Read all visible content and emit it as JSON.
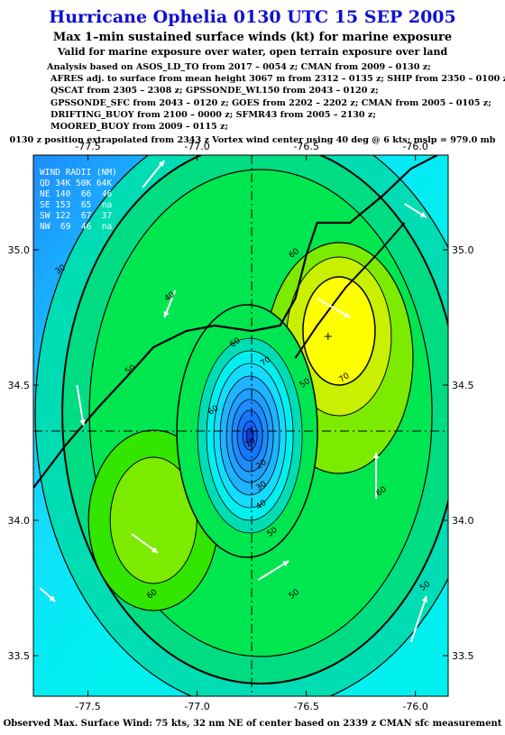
{
  "header": {
    "title": "Hurricane Ophelia 0130 UTC 15 SEP 2005",
    "subtitle": "Max 1–min sustained surface winds (kt) for marine exposure",
    "subtitle2": "Valid for marine exposure over water, open terrain exposure over land",
    "analysis_lines": [
      "Analysis based on  ASOS_LD_TO from 2017 – 0054 z;  CMAN from 2009 – 0130 z;",
      "AFRES adj. to surface from mean height 3067 m from 2312 – 0135 z;  SHIP from 2350 – 0100 z;",
      "QSCAT from 2305 – 2308 z;  GPSSONDE_WL150 from 2043 – 0120 z;",
      "GPSSONDE_SFC from 2043 – 0120 z;  GOES from 2202 – 2202 z;  CMAN from 2005 – 0105 z;",
      "DRIFTING_BUOY from 2100 – 0000 z;  SFMR43 from 2005 – 2130 z;",
      "MOORED_BUOY from 2009 – 0115 z;"
    ],
    "position_line": "0130 z position extrapolated from 2343 z Vortex wind center using 40 deg @ 6 kts; mslp = 979.0 mb"
  },
  "footer": "Observed Max. Surface Wind: 75 kts, 32 nm NE of center based on 2339 z CMAN sfc measurement",
  "wind_radii": {
    "title": "WIND RADII (NM)",
    "header": "QD 34K 50K 64K",
    "rows": [
      {
        "quadrant": "NE",
        "r34": "140",
        "r50": "66",
        "r64": "46"
      },
      {
        "quadrant": "SE",
        "r34": "153",
        "r50": "65",
        "r64": "na"
      },
      {
        "quadrant": "SW",
        "r34": "122",
        "r50": "67",
        "r64": "37"
      },
      {
        "quadrant": "NW",
        "r34": "69",
        "r50": "46",
        "r64": "na"
      }
    ]
  },
  "colors": {
    "title": "#1010d0",
    "level_colors": [
      "#1464ff",
      "#1e8cff",
      "#1eb4ff",
      "#14dcff",
      "#00f0f0",
      "#00dcb4",
      "#00dc82",
      "#00e650",
      "#32e600",
      "#7deb00",
      "#c8f000",
      "#ffff00",
      "#ffd700"
    ]
  },
  "chart_data": {
    "type": "heatmap",
    "title": "Hurricane Ophelia 0130 UTC 15 SEP 2005",
    "x_ticks": [
      "-77.5",
      "-77.0",
      "-76.5",
      "-76.0"
    ],
    "y_ticks": [
      "35.0",
      "34.5",
      "34.0",
      "33.5"
    ],
    "xlim": [
      -77.75,
      -75.85
    ],
    "ylim": [
      33.35,
      35.35
    ],
    "center": {
      "lon": -76.75,
      "lat": 34.33
    },
    "contour_labels": [
      "10",
      "20",
      "30",
      "40",
      "50",
      "60",
      "70",
      "60",
      "50",
      "40",
      "30",
      "50",
      "60",
      "60",
      "50",
      "50",
      "60",
      "70"
    ],
    "storm_marker": {
      "lon": -76.4,
      "lat": 34.68
    },
    "units": "kt"
  }
}
